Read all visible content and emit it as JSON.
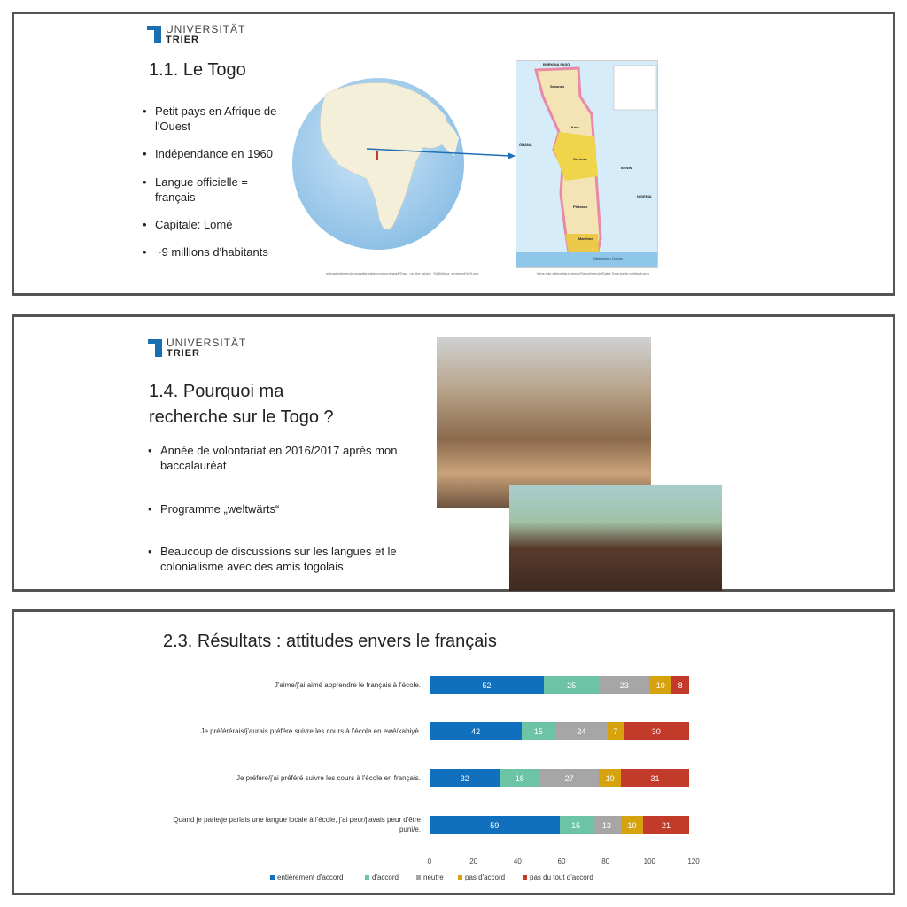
{
  "logo": {
    "line1": "UNIVERSITÄT",
    "line2": "TRIER"
  },
  "slide1": {
    "title": "1.1. Le Togo",
    "bullets": [
      "Petit pays en Afrique de l'Ouest",
      "Indépendance en 1960",
      "Langue officielle = français",
      "Capitale: Lomé",
      "~9 millions d'habitants"
    ],
    "globe_caption": "upload.wikimedia.org/wikipedia/commons/a/a4/Togo_on_the_globe_%28Africa_centered%29.svg",
    "map_caption": "https://de.wikipedia.org/wiki/Togo#/media/Datei:Togo-karte-politisch.png",
    "map_labels": {
      "north": "BURKINA FASO",
      "west": "GHANA",
      "east": "BENIN",
      "nigeria": "NIGERIA",
      "ocean": "Atlantischer Ozean",
      "regions": [
        "Savanes",
        "Kara",
        "Centrale",
        "Plateaux",
        "Maritime"
      ]
    }
  },
  "slide2": {
    "title_line1": "1.4. Pourquoi ma",
    "title_line2": "recherche sur le Togo ?",
    "bullets": [
      "Année de volontariat en 2016/2017 après mon baccalauréat",
      "Programme „weltwärts“",
      "Beaucoup de discussions sur les langues et le colonialisme avec des amis togolais"
    ]
  },
  "slide3": {
    "title": "2.3. Résultats : attitudes envers le français"
  },
  "chart_data": {
    "type": "bar",
    "orientation": "horizontal",
    "stacked": true,
    "categories": [
      "J'aime/j'ai aimé apprendre le français à l'école.",
      "Je préférérais/j'aurais préféré suivre les cours à l'école en ewé/kabiyè.",
      "Je préfère/j'ai préféré suivre les cours à l'école en français.",
      "Quand je parle/je parlais une langue locale à l'école, j'ai peur/j'avais peur d'être puni/e."
    ],
    "series": [
      {
        "name": "entièrement d'accord",
        "color": "#1170BE",
        "values": [
          52,
          42,
          32,
          59
        ]
      },
      {
        "name": "d'accord",
        "color": "#6CC3A6",
        "values": [
          25,
          15,
          18,
          15
        ]
      },
      {
        "name": "neutre",
        "color": "#A6A6A6",
        "values": [
          23,
          24,
          27,
          13
        ]
      },
      {
        "name": "pas d'accord",
        "color": "#D6A20E",
        "values": [
          10,
          7,
          10,
          10
        ]
      },
      {
        "name": "pas du tout d'accord",
        "color": "#C23A2A",
        "values": [
          8,
          30,
          31,
          21
        ]
      }
    ],
    "xlim": [
      0,
      120
    ],
    "xticks": [
      "0",
      "20",
      "40",
      "60",
      "80",
      "100",
      "120"
    ],
    "legend": "bottom",
    "data_labels": true
  }
}
